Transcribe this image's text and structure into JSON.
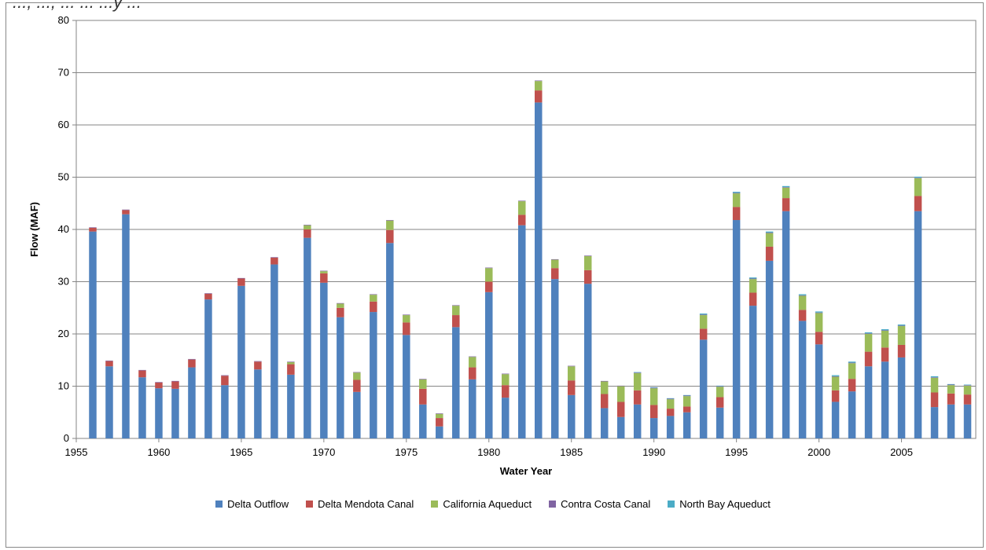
{
  "top_text": "..., ..., ... ... ...y ...",
  "chart_data": {
    "type": "bar",
    "stacked": true,
    "xlabel": "Water Year",
    "ylabel": "Flow (MAF)",
    "ylim": [
      0,
      80
    ],
    "yticks": [
      0,
      10,
      20,
      30,
      40,
      50,
      60,
      70,
      80
    ],
    "xlim": [
      1955,
      2009.5
    ],
    "xticks": [
      1955,
      1960,
      1965,
      1970,
      1975,
      1980,
      1985,
      1990,
      1995,
      2000,
      2005
    ],
    "grid": "horizontal",
    "legend_position": "bottom",
    "x": [
      1956,
      1957,
      1958,
      1959,
      1960,
      1961,
      1962,
      1963,
      1964,
      1965,
      1966,
      1967,
      1968,
      1969,
      1970,
      1971,
      1972,
      1973,
      1974,
      1975,
      1976,
      1977,
      1978,
      1979,
      1980,
      1981,
      1982,
      1983,
      1984,
      1985,
      1986,
      1987,
      1988,
      1989,
      1990,
      1991,
      1992,
      1993,
      1994,
      1995,
      1996,
      1997,
      1998,
      1999,
      2000,
      2001,
      2002,
      2003,
      2004,
      2005,
      2006,
      2007,
      2008,
      2009
    ],
    "series": [
      {
        "name": "Delta Outflow",
        "color": "#4f81bd",
        "values": [
          39.6,
          13.8,
          42.9,
          11.7,
          9.6,
          9.5,
          13.6,
          26.6,
          10.2,
          29.2,
          13.2,
          33.3,
          12.2,
          38.4,
          29.8,
          23.2,
          8.9,
          24.2,
          37.4,
          19.8,
          6.5,
          2.3,
          21.3,
          11.3,
          28.0,
          7.8,
          40.8,
          64.3,
          30.5,
          8.3,
          29.6,
          5.8,
          4.1,
          6.5,
          3.9,
          4.3,
          5.0,
          18.9,
          5.9,
          41.8,
          25.4,
          34.0,
          43.5,
          22.5,
          18.0,
          7.0,
          9.0,
          13.8,
          14.7,
          15.5,
          43.5,
          6.0,
          6.5,
          6.5
        ]
      },
      {
        "name": "Delta Mendota Canal",
        "color": "#c0504d",
        "values": [
          0.7,
          1.0,
          0.8,
          1.3,
          1.1,
          1.4,
          1.5,
          1.1,
          1.8,
          1.4,
          1.5,
          1.3,
          2.0,
          1.6,
          1.8,
          1.8,
          2.3,
          2.0,
          2.5,
          2.4,
          3.0,
          1.6,
          2.3,
          2.3,
          2.0,
          2.4,
          2.0,
          2.3,
          2.1,
          2.8,
          2.6,
          2.7,
          2.9,
          2.7,
          2.5,
          1.4,
          1.1,
          2.1,
          2.0,
          2.5,
          2.5,
          2.7,
          2.5,
          2.1,
          2.4,
          2.2,
          2.4,
          2.8,
          2.7,
          2.4,
          2.9,
          2.8,
          2.1,
          1.9
        ]
      },
      {
        "name": "California Aqueduct",
        "color": "#9bbb59",
        "values": [
          0.0,
          0.0,
          0.0,
          0.0,
          0.0,
          0.0,
          0.0,
          0.0,
          0.0,
          0.0,
          0.0,
          0.0,
          0.4,
          0.8,
          0.4,
          0.8,
          1.4,
          1.3,
          1.8,
          1.4,
          1.8,
          0.8,
          1.8,
          2.0,
          2.6,
          2.1,
          2.6,
          1.8,
          1.6,
          2.7,
          2.7,
          2.4,
          3.0,
          3.3,
          3.2,
          1.8,
          2.0,
          2.6,
          2.0,
          2.6,
          2.6,
          2.6,
          2.0,
          2.7,
          3.6,
          2.6,
          3.0,
          3.4,
          3.2,
          3.6,
          3.4,
          2.8,
          1.6,
          1.7
        ]
      },
      {
        "name": "Contra Costa Canal",
        "color": "#8064a2",
        "values": [
          0.1,
          0.1,
          0.1,
          0.1,
          0.1,
          0.1,
          0.1,
          0.1,
          0.1,
          0.1,
          0.1,
          0.1,
          0.1,
          0.1,
          0.1,
          0.1,
          0.1,
          0.1,
          0.1,
          0.1,
          0.1,
          0.1,
          0.1,
          0.1,
          0.1,
          0.1,
          0.1,
          0.1,
          0.1,
          0.1,
          0.1,
          0.1,
          0.1,
          0.1,
          0.1,
          0.1,
          0.1,
          0.1,
          0.1,
          0.1,
          0.1,
          0.1,
          0.1,
          0.1,
          0.1,
          0.1,
          0.1,
          0.1,
          0.1,
          0.1,
          0.1,
          0.1,
          0.1,
          0.1
        ]
      },
      {
        "name": "North Bay Aqueduct",
        "color": "#4bacc6",
        "values": [
          0.0,
          0.0,
          0.0,
          0.0,
          0.0,
          0.0,
          0.0,
          0.0,
          0.0,
          0.0,
          0.0,
          0.0,
          0.0,
          0.0,
          0.0,
          0.0,
          0.0,
          0.0,
          0.0,
          0.0,
          0.0,
          0.0,
          0.0,
          0.0,
          0.0,
          0.0,
          0.0,
          0.0,
          0.0,
          0.0,
          0.0,
          0.0,
          0.0,
          0.1,
          0.1,
          0.1,
          0.1,
          0.2,
          0.1,
          0.2,
          0.2,
          0.2,
          0.2,
          0.2,
          0.2,
          0.2,
          0.2,
          0.2,
          0.2,
          0.2,
          0.2,
          0.2,
          0.1,
          0.1
        ]
      }
    ]
  }
}
